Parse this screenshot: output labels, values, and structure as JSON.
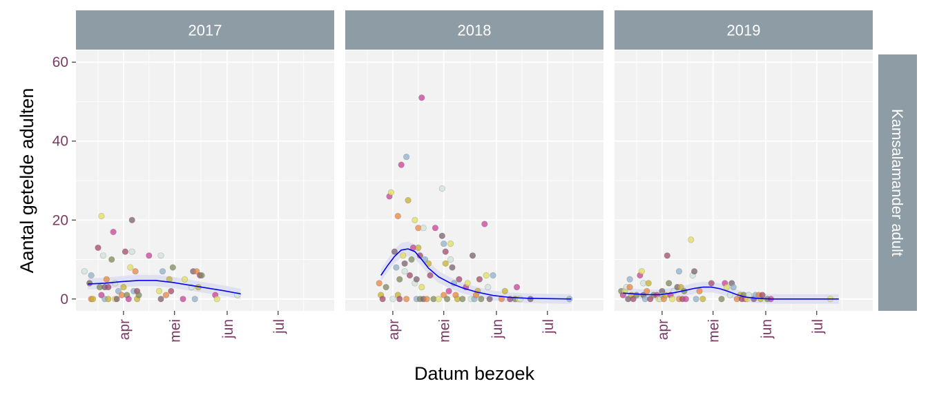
{
  "chart_data": {
    "type": "scatter",
    "xlabel": "Datum bezoek",
    "ylabel": "Aantal getelde adulten",
    "row_strip": "Kamsalamander adult",
    "ylim": [
      -3,
      63
    ],
    "y_ticks": [
      0,
      20,
      40,
      60
    ],
    "x_ticks": [
      "apr",
      "mei",
      "jun",
      "jul"
    ],
    "x_tick_days": [
      91,
      121,
      152,
      182
    ],
    "xlim_days": [
      63,
      215
    ],
    "colors": {
      "panel_bg": "#f2f2f2",
      "grid": "#ffffff",
      "strip_bg": "#8e9ca6",
      "smooth_line": "#0000ee",
      "smooth_band": "#d9dcef",
      "tick_label": "#7a3b63"
    },
    "point_palette": [
      "#cfe3d8",
      "#c7b02e",
      "#e2df5c",
      "#e8863f",
      "#c83f9a",
      "#8fb0c9",
      "#7d8a5a",
      "#7c5f6e",
      "#a14a6b"
    ],
    "panels": [
      {
        "year": "2017",
        "smooth": [
          [
            70,
            3.8
          ],
          [
            80,
            4.0
          ],
          [
            90,
            4.4
          ],
          [
            100,
            4.7
          ],
          [
            110,
            4.7
          ],
          [
            120,
            4.2
          ],
          [
            130,
            3.5
          ],
          [
            140,
            2.8
          ],
          [
            150,
            2.1
          ],
          [
            160,
            1.3
          ]
        ],
        "points": [
          [
            68,
            7
          ],
          [
            71,
            4
          ],
          [
            72,
            6
          ],
          [
            72,
            0
          ],
          [
            73,
            0
          ],
          [
            76,
            13
          ],
          [
            77,
            3
          ],
          [
            78,
            1
          ],
          [
            78,
            21
          ],
          [
            79,
            11
          ],
          [
            80,
            3
          ],
          [
            80,
            0
          ],
          [
            81,
            5
          ],
          [
            82,
            0
          ],
          [
            82,
            3
          ],
          [
            84,
            10
          ],
          [
            85,
            17
          ],
          [
            86,
            0
          ],
          [
            86,
            4
          ],
          [
            87,
            0
          ],
          [
            88,
            2
          ],
          [
            90,
            1
          ],
          [
            91,
            3
          ],
          [
            92,
            12
          ],
          [
            93,
            1
          ],
          [
            94,
            0
          ],
          [
            95,
            8
          ],
          [
            96,
            12
          ],
          [
            96,
            20
          ],
          [
            97,
            2
          ],
          [
            98,
            7
          ],
          [
            99,
            0
          ],
          [
            99,
            2
          ],
          [
            100,
            1
          ],
          [
            106,
            11
          ],
          [
            112,
            2
          ],
          [
            113,
            11
          ],
          [
            113,
            0
          ],
          [
            114,
            7
          ],
          [
            116,
            1
          ],
          [
            118,
            5
          ],
          [
            119,
            2
          ],
          [
            120,
            8
          ],
          [
            126,
            0
          ],
          [
            127,
            5
          ],
          [
            131,
            3
          ],
          [
            132,
            7
          ],
          [
            133,
            0
          ],
          [
            134,
            7
          ],
          [
            135,
            3
          ],
          [
            136,
            6
          ],
          [
            137,
            6
          ],
          [
            145,
            1
          ],
          [
            146,
            0
          ],
          [
            158,
            1
          ]
        ]
      },
      {
        "year": "2018",
        "smooth": [
          [
            84,
            6
          ],
          [
            88,
            8.5
          ],
          [
            92,
            10.8
          ],
          [
            96,
            12.4
          ],
          [
            100,
            12.7
          ],
          [
            104,
            12
          ],
          [
            108,
            10
          ],
          [
            112,
            7.8
          ],
          [
            118,
            5.6
          ],
          [
            125,
            4
          ],
          [
            132,
            2.8
          ],
          [
            140,
            1.8
          ],
          [
            150,
            0.9
          ],
          [
            160,
            0.4
          ],
          [
            170,
            0.2
          ],
          [
            180,
            0.1
          ],
          [
            196,
            0
          ]
        ],
        "points": [
          [
            83,
            4
          ],
          [
            84,
            1
          ],
          [
            85,
            0
          ],
          [
            87,
            3
          ],
          [
            89,
            26
          ],
          [
            90,
            27
          ],
          [
            91,
            0
          ],
          [
            92,
            12
          ],
          [
            93,
            8
          ],
          [
            94,
            21
          ],
          [
            94,
            1
          ],
          [
            95,
            0
          ],
          [
            95,
            5
          ],
          [
            96,
            34
          ],
          [
            97,
            11
          ],
          [
            98,
            7
          ],
          [
            98,
            9
          ],
          [
            99,
            36
          ],
          [
            99,
            0
          ],
          [
            100,
            25
          ],
          [
            101,
            6
          ],
          [
            102,
            10
          ],
          [
            103,
            13
          ],
          [
            104,
            20
          ],
          [
            104,
            4
          ],
          [
            105,
            5
          ],
          [
            105,
            0
          ],
          [
            106,
            18
          ],
          [
            106,
            13
          ],
          [
            107,
            11
          ],
          [
            107,
            0
          ],
          [
            108,
            51
          ],
          [
            108,
            3
          ],
          [
            109,
            18
          ],
          [
            109,
            0
          ],
          [
            110,
            10
          ],
          [
            111,
            0
          ],
          [
            112,
            9
          ],
          [
            113,
            6
          ],
          [
            115,
            0
          ],
          [
            116,
            18
          ],
          [
            118,
            0
          ],
          [
            120,
            28
          ],
          [
            120,
            16
          ],
          [
            121,
            14
          ],
          [
            121,
            1
          ],
          [
            122,
            9
          ],
          [
            122,
            12
          ],
          [
            123,
            0
          ],
          [
            124,
            2
          ],
          [
            125,
            14
          ],
          [
            125,
            10
          ],
          [
            126,
            8
          ],
          [
            127,
            4
          ],
          [
            128,
            1
          ],
          [
            129,
            0
          ],
          [
            130,
            5
          ],
          [
            132,
            0
          ],
          [
            134,
            3
          ],
          [
            135,
            4
          ],
          [
            137,
            0
          ],
          [
            138,
            11
          ],
          [
            139,
            0
          ],
          [
            140,
            1
          ],
          [
            141,
            2
          ],
          [
            142,
            5
          ],
          [
            143,
            0
          ],
          [
            145,
            19
          ],
          [
            146,
            6
          ],
          [
            147,
            3
          ],
          [
            148,
            0
          ],
          [
            150,
            6
          ],
          [
            155,
            0
          ],
          [
            157,
            2
          ],
          [
            160,
            0
          ],
          [
            163,
            0
          ],
          [
            164,
            3
          ],
          [
            165,
            0
          ],
          [
            166,
            0
          ],
          [
            172,
            0
          ],
          [
            195,
            0
          ]
        ]
      },
      {
        "year": "2019",
        "smooth": [
          [
            68,
            1.5
          ],
          [
            75,
            1.3
          ],
          [
            82,
            1.1
          ],
          [
            90,
            1.1
          ],
          [
            98,
            1.6
          ],
          [
            105,
            2.2
          ],
          [
            110,
            2.7
          ],
          [
            115,
            3.0
          ],
          [
            120,
            3.0
          ],
          [
            125,
            2.6
          ],
          [
            130,
            1.9
          ],
          [
            135,
            1.1
          ],
          [
            140,
            0.5
          ],
          [
            146,
            0.2
          ],
          [
            155,
            0
          ],
          [
            170,
            0
          ],
          [
            195,
            0
          ]
        ],
        "points": [
          [
            67,
            2
          ],
          [
            68,
            1
          ],
          [
            69,
            2
          ],
          [
            70,
            3
          ],
          [
            71,
            0
          ],
          [
            72,
            5
          ],
          [
            72,
            3
          ],
          [
            73,
            1
          ],
          [
            74,
            0
          ],
          [
            76,
            1
          ],
          [
            78,
            6
          ],
          [
            79,
            7
          ],
          [
            80,
            4
          ],
          [
            80,
            1
          ],
          [
            81,
            0
          ],
          [
            82,
            2
          ],
          [
            83,
            4
          ],
          [
            84,
            0
          ],
          [
            86,
            1
          ],
          [
            88,
            1
          ],
          [
            89,
            0
          ],
          [
            90,
            0
          ],
          [
            91,
            2
          ],
          [
            91,
            1
          ],
          [
            92,
            0
          ],
          [
            93,
            1
          ],
          [
            94,
            11
          ],
          [
            95,
            4
          ],
          [
            96,
            1
          ],
          [
            97,
            0
          ],
          [
            98,
            2
          ],
          [
            100,
            3
          ],
          [
            101,
            7
          ],
          [
            101,
            0
          ],
          [
            102,
            3
          ],
          [
            103,
            0
          ],
          [
            104,
            2
          ],
          [
            105,
            0
          ],
          [
            108,
            15
          ],
          [
            109,
            6
          ],
          [
            110,
            7
          ],
          [
            111,
            0
          ],
          [
            113,
            2
          ],
          [
            115,
            0
          ],
          [
            120,
            4
          ],
          [
            126,
            0
          ],
          [
            128,
            4
          ],
          [
            129,
            3
          ],
          [
            131,
            1
          ],
          [
            132,
            4
          ],
          [
            133,
            3
          ],
          [
            135,
            0
          ],
          [
            137,
            1
          ],
          [
            138,
            0
          ],
          [
            139,
            1
          ],
          [
            140,
            0
          ],
          [
            141,
            0
          ],
          [
            142,
            1
          ],
          [
            145,
            0
          ],
          [
            146,
            1
          ],
          [
            148,
            1
          ],
          [
            149,
            0
          ],
          [
            150,
            1
          ],
          [
            153,
            0
          ],
          [
            155,
            0
          ],
          [
            190,
            0
          ]
        ]
      }
    ]
  }
}
